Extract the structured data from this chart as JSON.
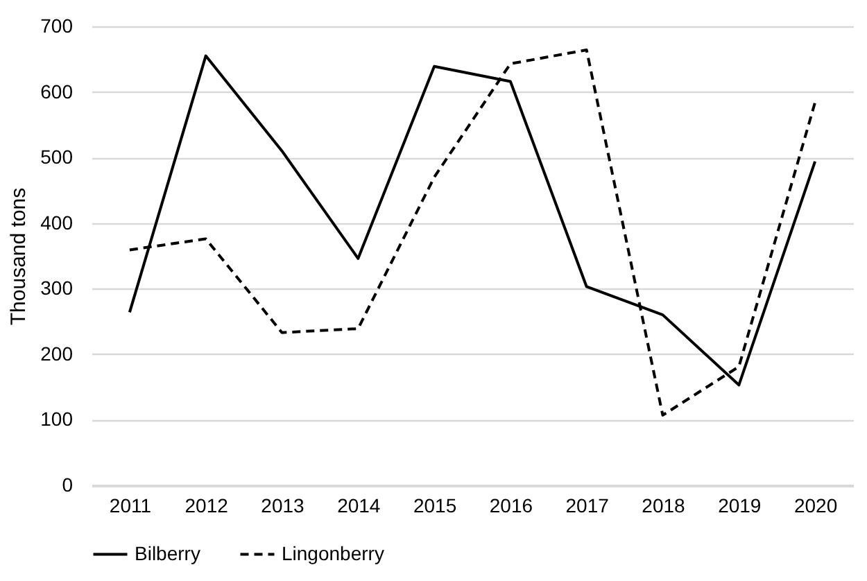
{
  "chart_data": {
    "type": "line",
    "ylabel": "Thousand tons",
    "categories": [
      "2011",
      "2012",
      "2013",
      "2014",
      "2015",
      "2016",
      "2017",
      "2018",
      "2019",
      "2020"
    ],
    "series": [
      {
        "name": "Bilberry",
        "color": "#000000",
        "line_style": "solid",
        "values": [
          264,
          655,
          510,
          346,
          639,
          616,
          303,
          260,
          153,
          494
        ]
      },
      {
        "name": "Lingonberry",
        "color": "#000000",
        "line_style": "dashed",
        "values": [
          359,
          376,
          233,
          239,
          470,
          643,
          664,
          107,
          181,
          584
        ]
      }
    ],
    "ylim": [
      0,
      700
    ],
    "yticks": [
      0,
      100,
      200,
      300,
      400,
      500,
      600,
      700
    ],
    "grid": "y",
    "legend": "bottom"
  }
}
